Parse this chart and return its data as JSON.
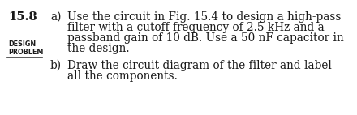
{
  "problem_number": "15.8",
  "label_design": "DESIGN",
  "label_problem": "PROBLEM",
  "part_a_label": "a)",
  "part_a_text_line1": "Use the circuit in Fig. 15.4 to design a high-pass",
  "part_a_text_line2": "filter with a cutoff frequency of 2.5 kHz and a",
  "part_a_text_line3": "passband gain of 10 dB. Use a 50 nF capacitor in",
  "part_a_text_line4": "the design.",
  "part_b_label": "b)",
  "part_b_text_line1": "Draw the circuit diagram of the filter and label",
  "part_b_text_line2": "all the components.",
  "bg_color": "#ffffff",
  "text_color": "#1a1a1a",
  "font_size_number": 10.5,
  "font_size_small": 5.8,
  "font_size_body": 9.8
}
